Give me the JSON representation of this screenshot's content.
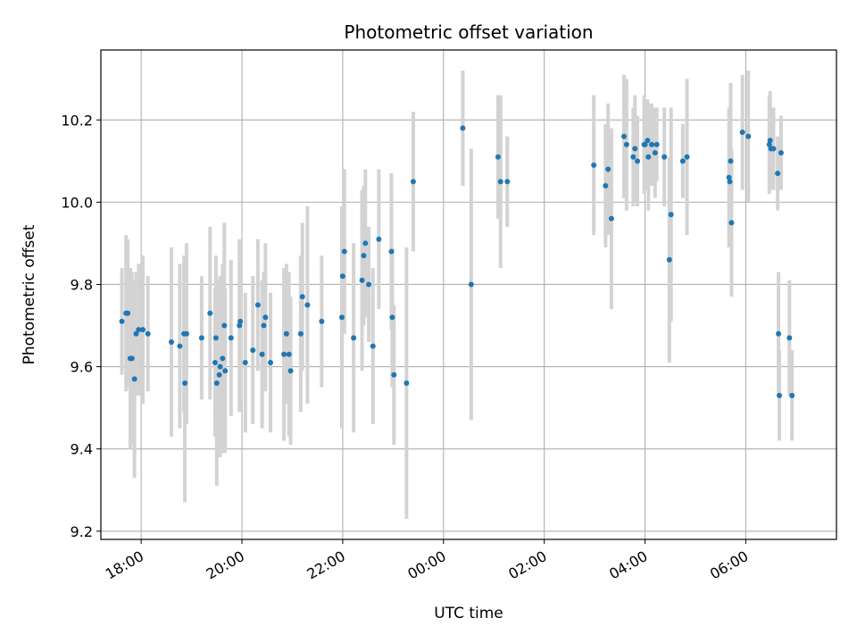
{
  "chart_data": {
    "type": "scatter",
    "title": "Photometric offset variation",
    "xlabel": "UTC time",
    "ylabel": "Photometric offset",
    "x_tick_labels": [
      "18:00",
      "20:00",
      "22:00",
      "00:00",
      "02:00",
      "04:00",
      "06:00"
    ],
    "y_tick_labels": [
      "9.2",
      "9.4",
      "9.6",
      "9.8",
      "10.0",
      "10.2"
    ],
    "y_ticks": [
      9.2,
      9.4,
      9.6,
      9.8,
      10.0,
      10.2
    ],
    "xlim": [
      "17:12",
      "07:48"
    ],
    "ylim": [
      9.18,
      10.37
    ],
    "grid": true,
    "colors": {
      "point": "#1f77b4",
      "errorbar": "#d3d3d3",
      "grid": "#b0b0b0"
    },
    "series": [
      {
        "x": [
          "17:37",
          "17:42",
          "17:44",
          "17:47",
          "17:49",
          "17:52",
          "17:54",
          "17:57",
          "18:02",
          "18:08",
          "18:36",
          "18:46",
          "18:51",
          "18:52",
          "18:54",
          "19:12",
          "19:22",
          "19:28",
          "19:29",
          "19:30",
          "19:33",
          "19:34",
          "19:37",
          "19:39",
          "19:40",
          "19:47",
          "19:57",
          "19:58",
          "20:04",
          "20:13",
          "20:19",
          "20:24",
          "20:26",
          "20:28",
          "20:34",
          "20:50",
          "20:53",
          "20:56",
          "20:58",
          "21:10",
          "21:12",
          "21:18",
          "21:35",
          "21:59",
          "22:00",
          "22:02",
          "22:13",
          "22:23",
          "22:25",
          "22:27",
          "22:31",
          "22:36",
          "22:43",
          "22:58",
          "22:59",
          "23:01",
          "23:16",
          "23:24",
          "00:23",
          "00:33",
          "01:05",
          "01:08",
          "01:16",
          "02:59",
          "03:13",
          "03:16",
          "03:20",
          "03:35",
          "03:38",
          "03:46",
          "03:48",
          "03:51",
          "03:59",
          "04:00",
          "04:03",
          "04:04",
          "04:08",
          "04:12",
          "04:14",
          "04:23",
          "04:29",
          "04:31",
          "04:45",
          "04:50",
          "05:40",
          "05:41",
          "05:42",
          "05:43",
          "05:56",
          "06:03",
          "06:28",
          "06:29",
          "06:30",
          "06:33",
          "06:38",
          "06:39",
          "06:40",
          "06:42",
          "06:52",
          "06:55"
        ],
        "y": [
          9.71,
          9.73,
          9.73,
          9.62,
          9.62,
          9.57,
          9.68,
          9.69,
          9.69,
          9.68,
          9.66,
          9.65,
          9.68,
          9.56,
          9.68,
          9.67,
          9.73,
          9.61,
          9.67,
          9.56,
          9.58,
          9.6,
          9.62,
          9.7,
          9.59,
          9.67,
          9.7,
          9.71,
          9.61,
          9.64,
          9.75,
          9.63,
          9.7,
          9.72,
          9.61,
          9.63,
          9.68,
          9.63,
          9.59,
          9.68,
          9.77,
          9.75,
          9.71,
          9.72,
          9.82,
          9.88,
          9.67,
          9.81,
          9.87,
          9.9,
          9.8,
          9.65,
          9.91,
          9.88,
          9.72,
          9.58,
          9.56,
          10.05,
          10.18,
          9.8,
          10.11,
          10.05,
          10.05,
          10.09,
          10.04,
          10.08,
          9.96,
          10.16,
          10.14,
          10.11,
          10.13,
          10.1,
          10.14,
          10.14,
          10.15,
          10.11,
          10.14,
          10.12,
          10.14,
          10.11,
          9.86,
          9.97,
          10.1,
          10.11,
          10.06,
          10.05,
          10.1,
          9.95,
          10.17,
          10.16,
          10.14,
          10.15,
          10.13,
          10.13,
          10.07,
          9.68,
          9.53,
          10.12,
          9.67,
          9.53
        ],
        "yerr": [
          0.13,
          0.19,
          0.18,
          0.22,
          0.21,
          0.24,
          0.15,
          0.16,
          0.18,
          0.14,
          0.23,
          0.2,
          0.19,
          0.29,
          0.22,
          0.15,
          0.21,
          0.18,
          0.2,
          0.25,
          0.2,
          0.22,
          0.23,
          0.25,
          0.2,
          0.19,
          0.21,
          0.2,
          0.17,
          0.18,
          0.16,
          0.18,
          0.13,
          0.18,
          0.17,
          0.21,
          0.17,
          0.2,
          0.18,
          0.19,
          0.18,
          0.24,
          0.16,
          0.27,
          0.14,
          0.2,
          0.23,
          0.22,
          0.17,
          0.18,
          0.14,
          0.19,
          0.17,
          0.19,
          0.17,
          0.17,
          0.33,
          0.17,
          0.14,
          0.33,
          0.15,
          0.21,
          0.11,
          0.17,
          0.15,
          0.16,
          0.22,
          0.15,
          0.16,
          0.12,
          0.13,
          0.11,
          0.12,
          0.11,
          0.1,
          0.13,
          0.1,
          0.11,
          0.09,
          0.12,
          0.25,
          0.26,
          0.09,
          0.19,
          0.17,
          0.16,
          0.19,
          0.18,
          0.14,
          0.16,
          0.12,
          0.12,
          0.1,
          0.1,
          0.09,
          0.15,
          0.11,
          0.09,
          0.14,
          0.11
        ]
      }
    ]
  }
}
